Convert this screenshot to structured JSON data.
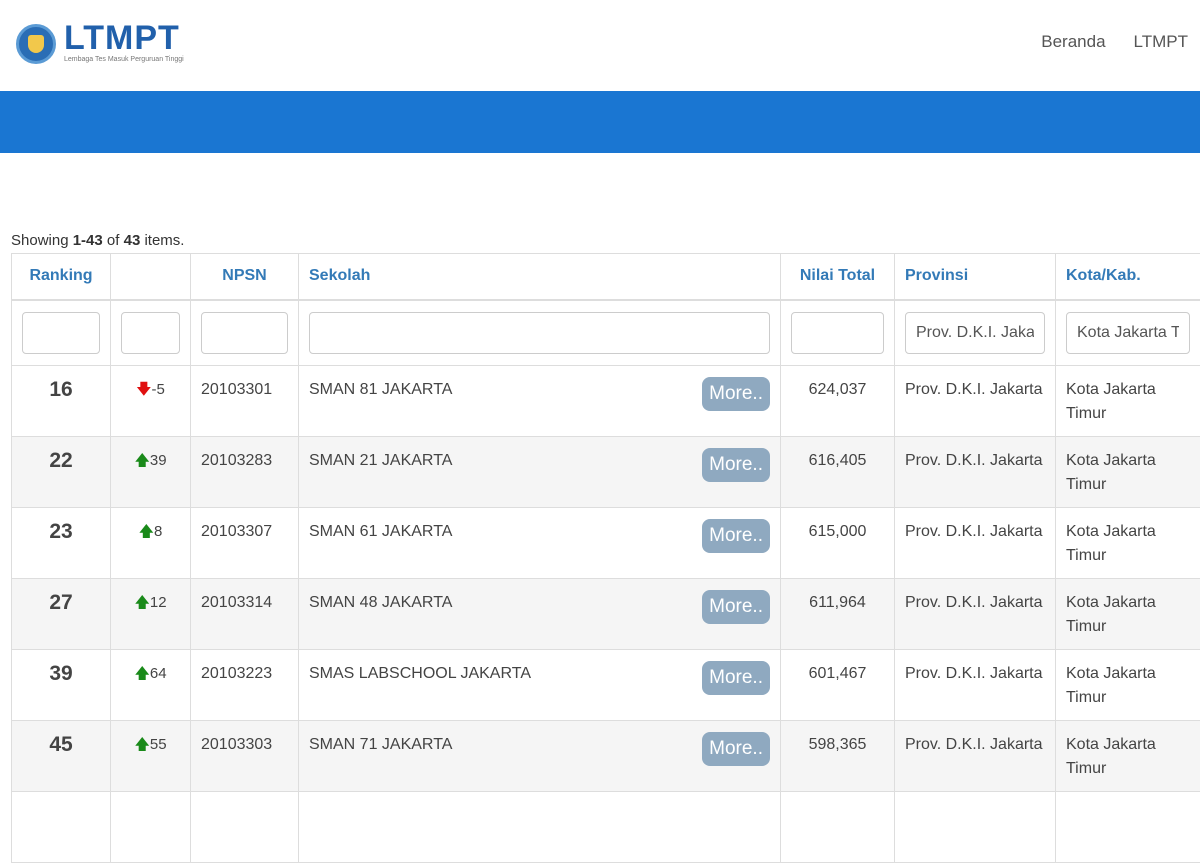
{
  "header": {
    "brand": "LTMPT",
    "tagline": "Lembaga Tes Masuk Perguruan Tinggi",
    "nav": [
      "Beranda",
      "LTMPT"
    ]
  },
  "summary": {
    "prefix": "Showing ",
    "range": "1-43",
    "mid": " of ",
    "total": "43",
    "suffix": " items."
  },
  "columns": [
    "Ranking",
    "",
    "NPSN",
    "Sekolah",
    "Nilai Total",
    "Provinsi",
    "Kota/Kab."
  ],
  "filters": {
    "provinsi": "Prov. D.K.I. Jakarta",
    "kota": "Kota Jakarta Timur"
  },
  "more_label": "More..",
  "rows": [
    {
      "rank": "16",
      "dir": "down",
      "change": "-5",
      "npsn": "20103301",
      "school": "SMAN 81 JAKARTA",
      "total": "624,037",
      "prov": "Prov. D.K.I. Jakarta",
      "kota": "Kota Jakarta Timur"
    },
    {
      "rank": "22",
      "dir": "up",
      "change": "39",
      "npsn": "20103283",
      "school": "SMAN 21 JAKARTA",
      "total": "616,405",
      "prov": "Prov. D.K.I. Jakarta",
      "kota": "Kota Jakarta Timur"
    },
    {
      "rank": "23",
      "dir": "up",
      "change": "8",
      "npsn": "20103307",
      "school": "SMAN 61 JAKARTA",
      "total": "615,000",
      "prov": "Prov. D.K.I. Jakarta",
      "kota": "Kota Jakarta Timur"
    },
    {
      "rank": "27",
      "dir": "up",
      "change": "12",
      "npsn": "20103314",
      "school": "SMAN 48 JAKARTA",
      "total": "611,964",
      "prov": "Prov. D.K.I. Jakarta",
      "kota": "Kota Jakarta Timur"
    },
    {
      "rank": "39",
      "dir": "up",
      "change": "64",
      "npsn": "20103223",
      "school": "SMAS LABSCHOOL JAKARTA",
      "total": "601,467",
      "prov": "Prov. D.K.I. Jakarta",
      "kota": "Kota Jakarta Timur"
    },
    {
      "rank": "45",
      "dir": "up",
      "change": "55",
      "npsn": "20103303",
      "school": "SMAN 71 JAKARTA",
      "total": "598,365",
      "prov": "Prov. D.K.I. Jakarta",
      "kota": "Kota Jakarta Timur"
    }
  ]
}
